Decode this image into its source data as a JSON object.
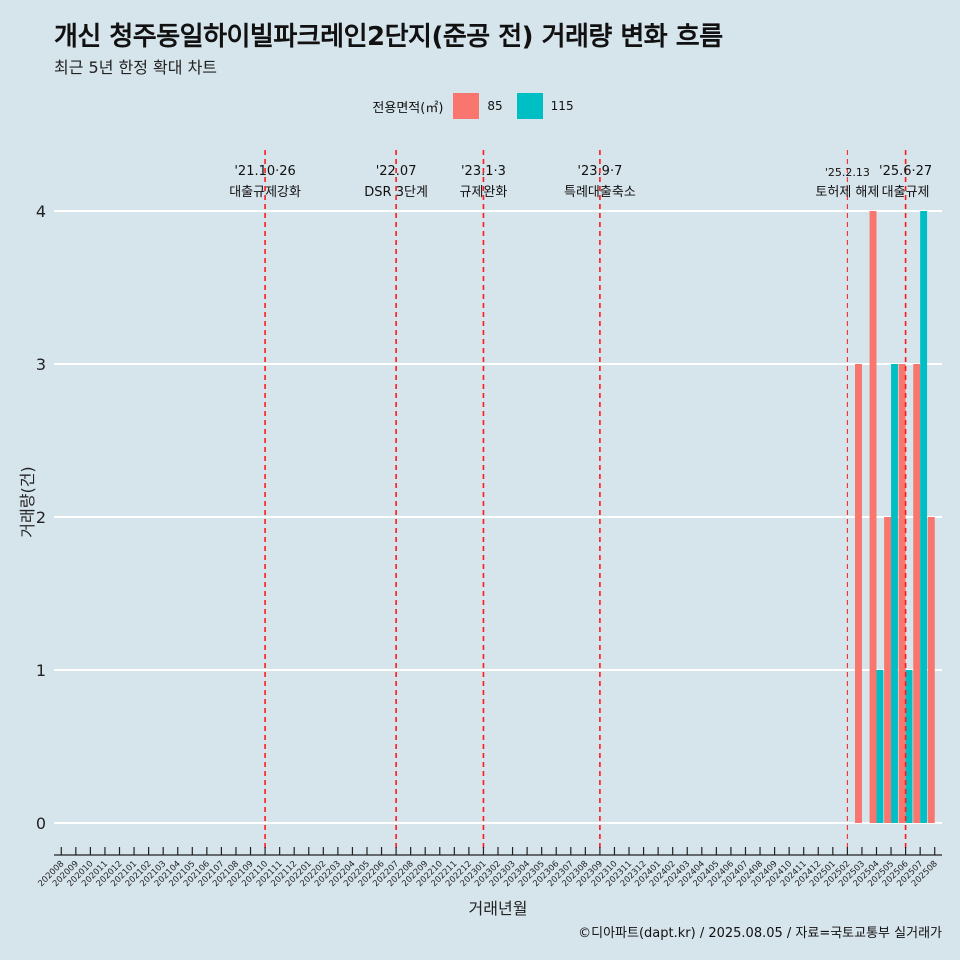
{
  "title": "개신 청주동일하이빌파크레인2단지(준공 전) 거래량 변화 흐름",
  "subtitle": "최근 5년 한정 확대 차트",
  "caption": "©디아파트(dapt.kr) / 2025.08.05 / 자료=국토교통부 실거래가",
  "legend": {
    "title": "전용면적(㎡)",
    "items": [
      {
        "label": "85",
        "color": "#f8766d"
      },
      {
        "label": "115",
        "color": "#00bfc4"
      }
    ]
  },
  "chart_data": {
    "type": "bar",
    "xlabel": "거래년월",
    "ylabel": "거래량(건)",
    "ylim": [
      0,
      4
    ],
    "y_ticks": [
      0,
      1,
      2,
      3,
      4
    ],
    "grid": true,
    "legend_position": "top",
    "categories": [
      "202008",
      "202009",
      "202010",
      "202011",
      "202012",
      "202101",
      "202102",
      "202103",
      "202104",
      "202105",
      "202106",
      "202107",
      "202108",
      "202109",
      "202110",
      "202111",
      "202112",
      "202201",
      "202202",
      "202203",
      "202204",
      "202205",
      "202206",
      "202207",
      "202208",
      "202209",
      "202210",
      "202211",
      "202212",
      "202301",
      "202302",
      "202303",
      "202304",
      "202305",
      "202306",
      "202307",
      "202308",
      "202309",
      "202310",
      "202311",
      "202312",
      "202401",
      "202402",
      "202403",
      "202404",
      "202405",
      "202406",
      "202407",
      "202408",
      "202409",
      "202410",
      "202411",
      "202412",
      "202501",
      "202502",
      "202503",
      "202504",
      "202505",
      "202506",
      "202507",
      "202508"
    ],
    "series": [
      {
        "name": "85",
        "color": "#f8766d",
        "values": [
          0,
          0,
          0,
          0,
          0,
          0,
          0,
          0,
          0,
          0,
          0,
          0,
          0,
          0,
          0,
          0,
          0,
          0,
          0,
          0,
          0,
          0,
          0,
          0,
          0,
          0,
          0,
          0,
          0,
          0,
          0,
          0,
          0,
          0,
          0,
          0,
          0,
          0,
          0,
          0,
          0,
          0,
          0,
          0,
          0,
          0,
          0,
          0,
          0,
          0,
          0,
          0,
          0,
          0,
          0,
          3,
          4,
          2,
          3,
          3,
          2
        ]
      },
      {
        "name": "115",
        "color": "#00bfc4",
        "values": [
          0,
          0,
          0,
          0,
          0,
          0,
          0,
          0,
          0,
          0,
          0,
          0,
          0,
          0,
          0,
          0,
          0,
          0,
          0,
          0,
          0,
          0,
          0,
          0,
          0,
          0,
          0,
          0,
          0,
          0,
          0,
          0,
          0,
          0,
          0,
          0,
          0,
          0,
          0,
          0,
          0,
          0,
          0,
          0,
          0,
          0,
          0,
          0,
          0,
          0,
          0,
          0,
          0,
          0,
          0,
          0,
          1,
          3,
          1,
          4,
          0
        ]
      }
    ],
    "annotations": [
      {
        "category": "202110",
        "date": "'21.10·26",
        "label": "대출규제강화"
      },
      {
        "category": "202207",
        "date": "'22.07",
        "label": "DSR 3단계"
      },
      {
        "category": "202301",
        "date": "'23.1·3",
        "label": "규제완화"
      },
      {
        "category": "202309",
        "date": "'23.9·7",
        "label": "특례대출축소"
      },
      {
        "category": "202502",
        "date": "'25.2.13",
        "label": "토허제 해제",
        "thin": true
      },
      {
        "category": "202506",
        "date": "'25.6·27",
        "label": "대출규제"
      }
    ]
  }
}
